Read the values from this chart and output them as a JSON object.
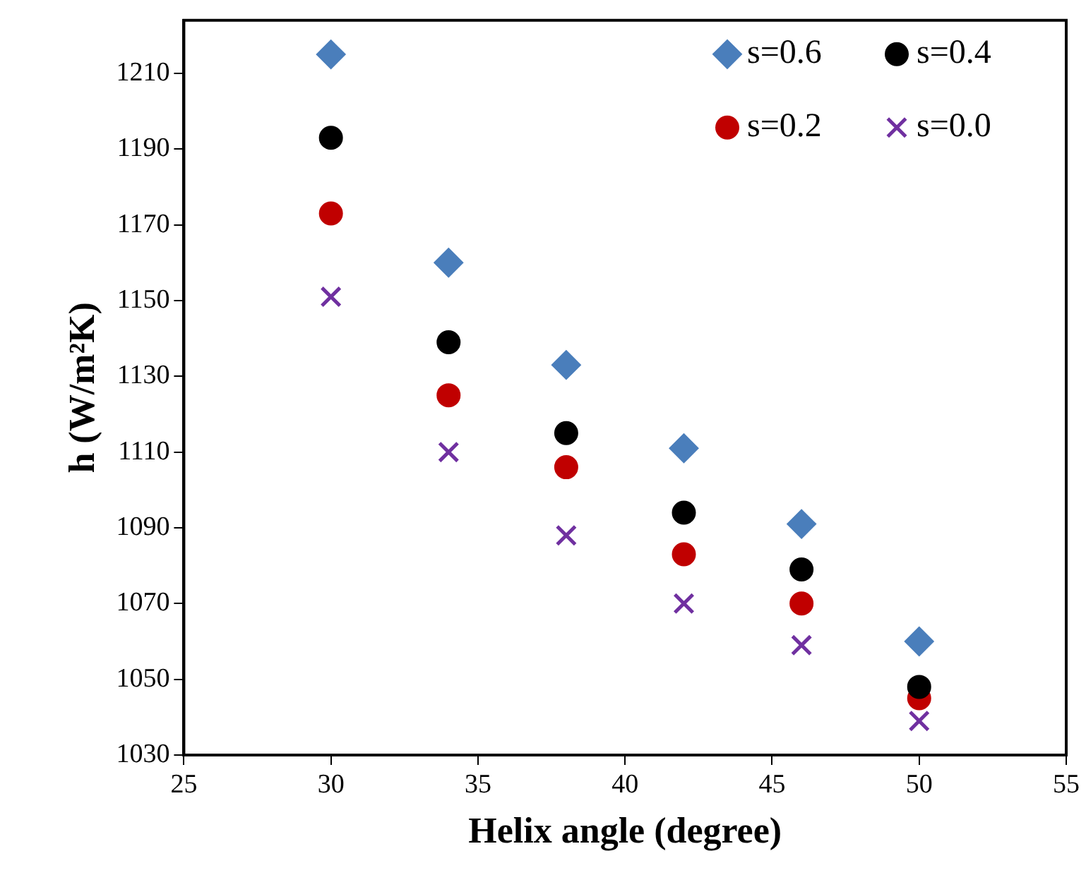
{
  "chart_data": {
    "type": "scatter",
    "xlabel": "Helix angle (degree)",
    "ylabel": "h (W/m²K)",
    "x": [
      30,
      34,
      38,
      42,
      46,
      50
    ],
    "xlim": [
      25,
      55
    ],
    "xticks": [
      25,
      30,
      35,
      40,
      45,
      50,
      55
    ],
    "ylim": [
      1030,
      1224
    ],
    "yticks": [
      1030,
      1050,
      1070,
      1090,
      1110,
      1130,
      1150,
      1170,
      1190,
      1210
    ],
    "grid": false,
    "legend": "top right",
    "series": [
      {
        "name": "s=0.6",
        "color": "#4a7ebb",
        "marker": "diamond",
        "values": [
          1215,
          1160,
          1133,
          1111,
          1091,
          1060
        ]
      },
      {
        "name": "s=0.4",
        "color": "#000000",
        "marker": "circle",
        "values": [
          1193,
          1139,
          1115,
          1094,
          1079,
          1048
        ]
      },
      {
        "name": "s=0.2",
        "color": "#c00000",
        "marker": "circle",
        "values": [
          1173,
          1125,
          1106,
          1083,
          1070,
          1045
        ]
      },
      {
        "name": "s=0.0",
        "color": "#7030a0",
        "marker": "cross",
        "values": [
          1151,
          1110,
          1088,
          1070,
          1059,
          1039
        ]
      }
    ]
  }
}
